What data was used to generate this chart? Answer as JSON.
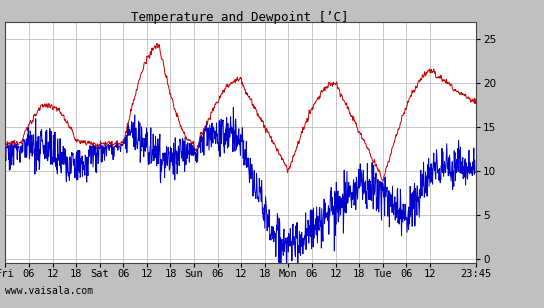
{
  "title": "Temperature and Dewpoint [’C]",
  "watermark": "www.vaisala.com",
  "temp_color": "#cc0000",
  "dew_color": "#0000cc",
  "bg_color": "#ffffff",
  "grid_color": "#b0b0b0",
  "outer_bg": "#c0c0c0",
  "ylim": [
    -0.5,
    27
  ],
  "yticks": [
    0,
    5,
    10,
    15,
    20,
    25
  ],
  "title_fontsize": 9,
  "tick_fontsize": 7.5,
  "watermark_fontsize": 7,
  "linewidth": 0.7,
  "x_tick_labels": [
    "Fri",
    "06",
    "12",
    "18",
    "Sat",
    "06",
    "12",
    "18",
    "Sun",
    "06",
    "12",
    "18",
    "Mon",
    "06",
    "12",
    "18",
    "Tue",
    "06",
    "12",
    "23:45"
  ],
  "x_tick_positions": [
    0,
    6,
    12,
    18,
    24,
    30,
    36,
    42,
    48,
    54,
    60,
    66,
    72,
    78,
    84,
    90,
    96,
    102,
    108,
    119.75
  ],
  "total_hours": 119.75
}
